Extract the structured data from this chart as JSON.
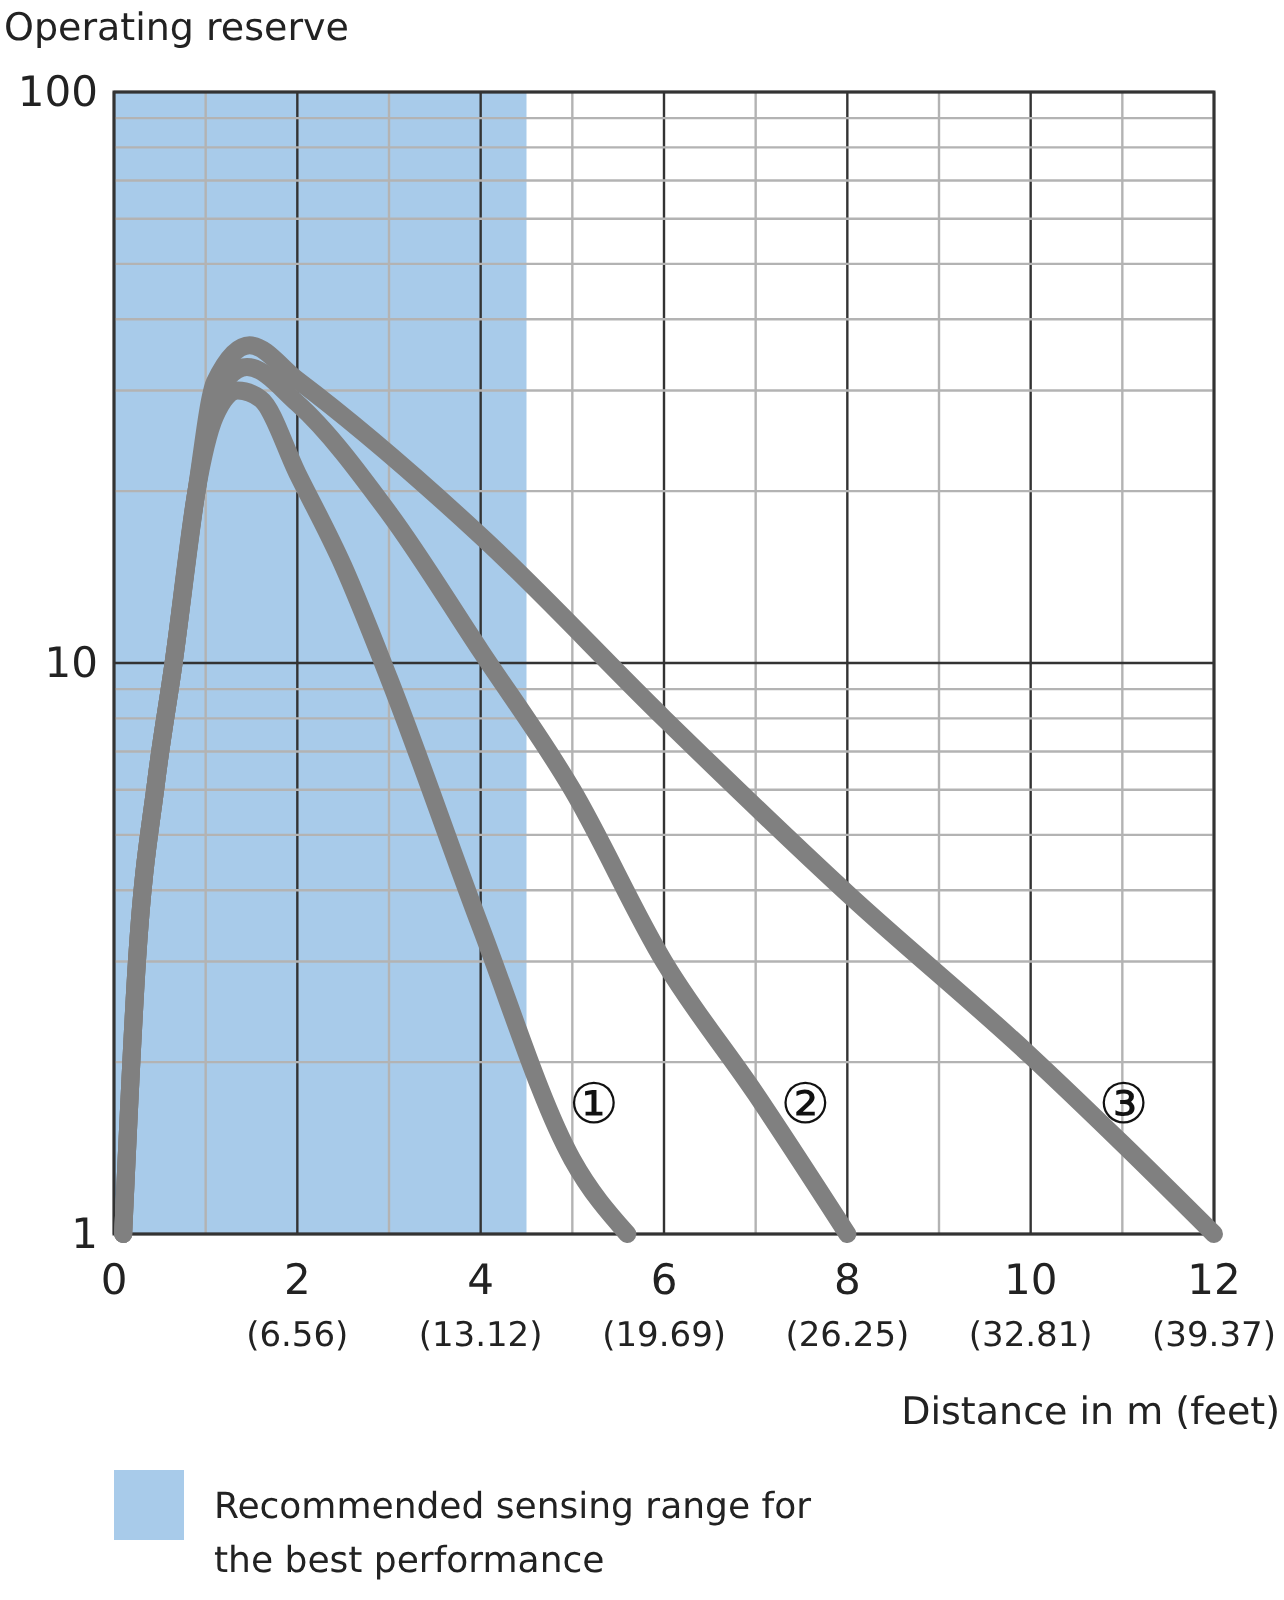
{
  "chart_data": {
    "type": "line",
    "xlabel": "Distance in m (feet)",
    "ylabel": "Operating reserve",
    "log": "y",
    "grid": true,
    "legend": "bottom",
    "marker": "none",
    "line_style": "solid",
    "xlim": [
      0,
      12
    ],
    "ylim": [
      1,
      100
    ],
    "xticks": [
      0,
      {
        "value": 1,
        "label": null
      },
      2,
      {
        "value": 3,
        "label": null
      },
      4,
      {
        "value": 5,
        "label": null
      },
      6,
      {
        "value": 7,
        "label": null
      },
      8,
      {
        "value": 9,
        "label": null
      },
      10,
      {
        "value": 11,
        "label": null
      },
      12
    ],
    "x2lim": [
      0,
      39.37
    ],
    "x2ticks": [
      {
        "value": 6.56,
        "label": "(6.56)"
      },
      {
        "value": 13.12,
        "label": "(13.12)"
      },
      {
        "value": 19.69,
        "label": "(19.69)"
      },
      {
        "value": 26.25,
        "label": "(26.25)"
      },
      {
        "value": 32.81,
        "label": "(32.81)"
      },
      {
        "value": 39.37,
        "label": "(39.37)"
      }
    ],
    "yticks": [
      1,
      {
        "value": 2,
        "label": null
      },
      {
        "value": 3,
        "label": null
      },
      {
        "value": 4,
        "label": null
      },
      {
        "value": 5,
        "label": null
      },
      {
        "value": 6,
        "label": null
      },
      {
        "value": 7,
        "label": null
      },
      {
        "value": 8,
        "label": null
      },
      {
        "value": 9,
        "label": null
      },
      10,
      {
        "value": 20,
        "label": null
      },
      {
        "value": 30,
        "label": null
      },
      {
        "value": 40,
        "label": null
      },
      {
        "value": 50,
        "label": null
      },
      {
        "value": 60,
        "label": null
      },
      {
        "value": 70,
        "label": null
      },
      {
        "value": 80,
        "label": null
      },
      {
        "value": 90,
        "label": null
      },
      100
    ],
    "bands": [
      {
        "axis": "x",
        "from": 0,
        "to": 4.5,
        "label": "Recommended sensing range for the best performance",
        "color": "#a8cbea"
      }
    ],
    "series": [
      {
        "name": "①",
        "color": "#808080",
        "x": [
          0.1,
          0.25,
          0.46,
          0.65,
          0.9,
          1.1,
          1.35,
          1.6,
          2,
          2.5,
          3,
          4,
          5,
          5.6
        ],
        "values": [
          1,
          3,
          6.2,
          10,
          20,
          27,
          30,
          29,
          21.5,
          14.8,
          9.4,
          3.45,
          1.35,
          1
        ]
      },
      {
        "name": "②",
        "color": "#808080",
        "x": [
          0.1,
          0.25,
          0.46,
          0.65,
          0.9,
          1.1,
          1.45,
          2,
          3,
          4,
          5,
          6,
          7,
          8
        ],
        "values": [
          1,
          3,
          6.2,
          10,
          20,
          29,
          33,
          28.5,
          18.3,
          10.5,
          6,
          3,
          1.76,
          1
        ]
      },
      {
        "name": "③",
        "color": "#808080",
        "x": [
          0.1,
          0.25,
          0.46,
          0.65,
          0.9,
          1.1,
          1.48,
          2,
          4,
          6,
          8,
          10,
          11,
          12
        ],
        "values": [
          1,
          3,
          6.2,
          10,
          20,
          31,
          36,
          31.3,
          16.7,
          8,
          3.95,
          2.05,
          1.44,
          1
        ]
      }
    ]
  }
}
